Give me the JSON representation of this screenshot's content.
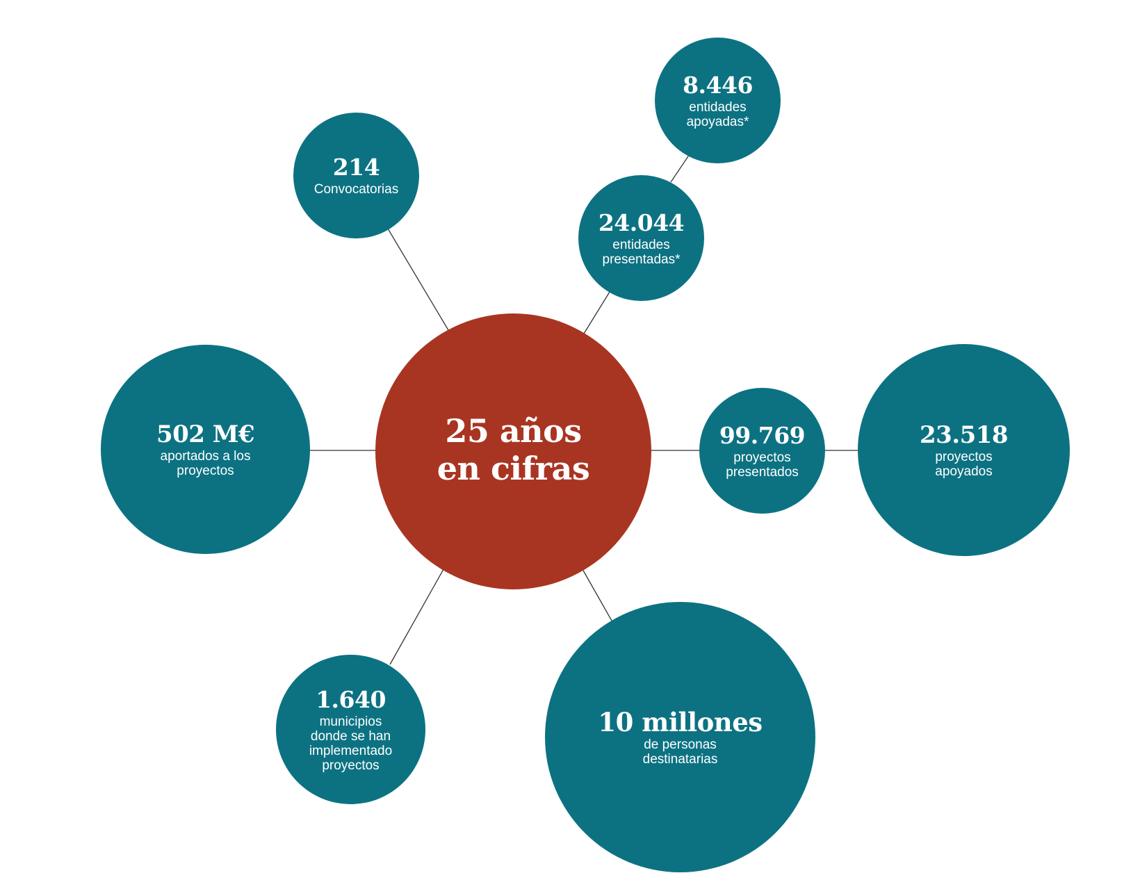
{
  "colors": {
    "node": "#0c7282",
    "center": "#a83522",
    "line": "#333333"
  },
  "center": {
    "title": "25 años\nen cifras"
  },
  "nodes": [
    {
      "value": "214",
      "label": "Convocatorias"
    },
    {
      "value": "8.446",
      "label": "entidades\napoyadas*"
    },
    {
      "value": "24.044",
      "label": "entidades\npresentadas*"
    },
    {
      "value": "502 M€",
      "label": "aportados a los\nproyectos"
    },
    {
      "value": "99.769",
      "label": "proyectos\npresentados"
    },
    {
      "value": "23.518",
      "label": "proyectos\napoyados"
    },
    {
      "value": "1.640",
      "label": "municipios\ndonde se han\nimplementado\nproyectos"
    },
    {
      "value": "10 millones",
      "label": "de personas\ndestinatarias"
    }
  ]
}
